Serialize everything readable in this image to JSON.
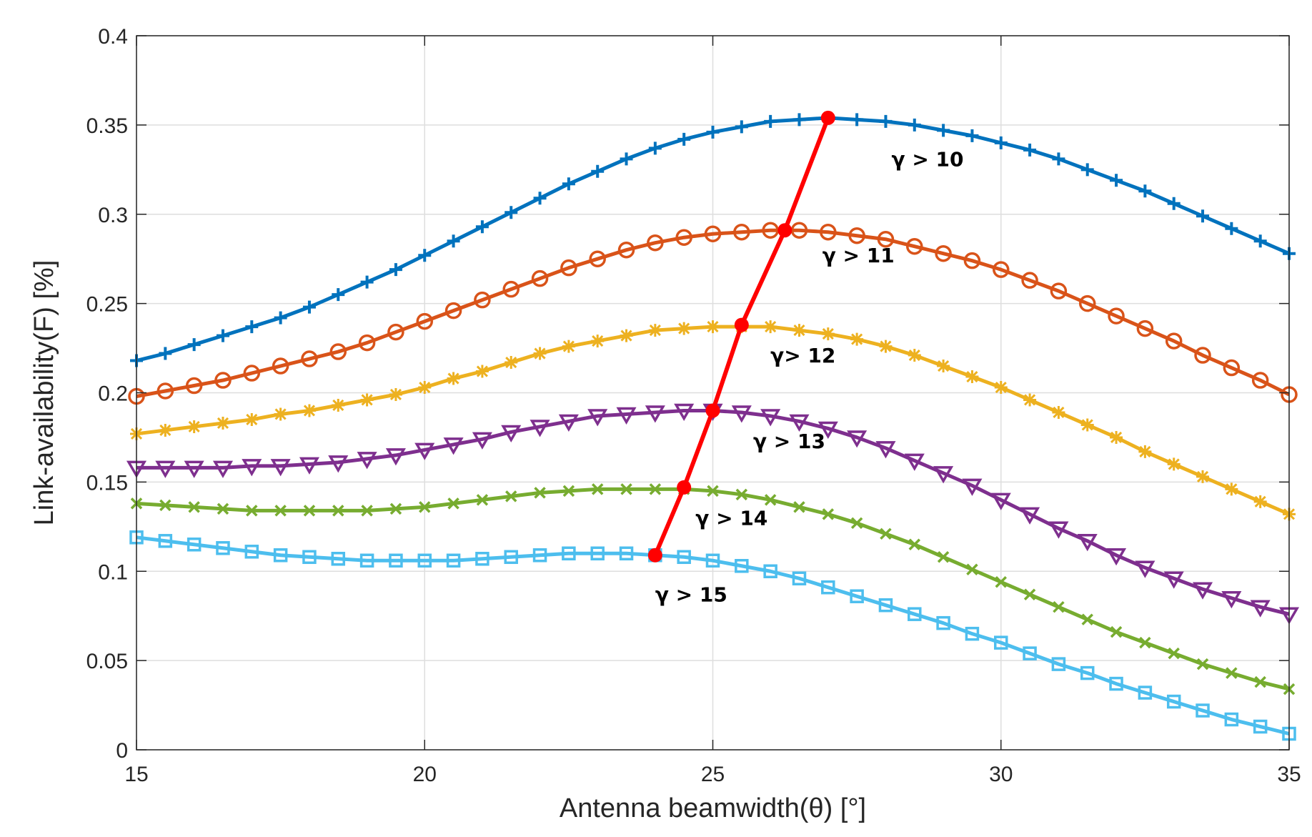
{
  "chart_data": {
    "type": "line",
    "title": "",
    "xlabel": "Antenna beamwidth(θ) [°]",
    "ylabel": "Link-availability(F) [%]",
    "xlim": [
      15,
      35
    ],
    "ylim": [
      0,
      0.4
    ],
    "x_ticks": [
      15,
      20,
      25,
      30,
      35
    ],
    "y_ticks": [
      0,
      0.05,
      0.1,
      0.15,
      0.2,
      0.25,
      0.3,
      0.35,
      0.4
    ],
    "x_tick_labels": [
      "15",
      "20",
      "25",
      "30",
      "35"
    ],
    "y_tick_labels": [
      "0",
      "0.05",
      "0.1",
      "0.15",
      "0.2",
      "0.25",
      "0.3",
      "0.35",
      "0.4"
    ],
    "grid": true,
    "x": [
      15,
      15.5,
      16,
      16.5,
      17,
      17.5,
      18,
      18.5,
      19,
      19.5,
      20,
      20.5,
      21,
      21.5,
      22,
      22.5,
      23,
      23.5,
      24,
      24.5,
      25,
      25.5,
      26,
      26.5,
      27,
      27.5,
      28,
      28.5,
      29,
      29.5,
      30,
      30.5,
      31,
      31.5,
      32,
      32.5,
      33,
      33.5,
      34,
      34.5,
      35
    ],
    "series": [
      {
        "name": "γ > 10",
        "color": "#0072BD",
        "marker": "plus",
        "values": [
          0.218,
          0.222,
          0.227,
          0.232,
          0.237,
          0.242,
          0.248,
          0.255,
          0.262,
          0.269,
          0.277,
          0.285,
          0.293,
          0.301,
          0.309,
          0.317,
          0.324,
          0.331,
          0.337,
          0.342,
          0.346,
          0.349,
          0.352,
          0.353,
          0.354,
          0.353,
          0.352,
          0.35,
          0.347,
          0.344,
          0.34,
          0.336,
          0.331,
          0.325,
          0.319,
          0.313,
          0.306,
          0.299,
          0.292,
          0.285,
          0.278
        ]
      },
      {
        "name": "γ > 11",
        "color": "#D95319",
        "marker": "circle",
        "values": [
          0.198,
          0.201,
          0.204,
          0.207,
          0.211,
          0.215,
          0.219,
          0.223,
          0.228,
          0.234,
          0.24,
          0.246,
          0.252,
          0.258,
          0.264,
          0.27,
          0.275,
          0.28,
          0.284,
          0.287,
          0.289,
          0.29,
          0.291,
          0.291,
          0.29,
          0.288,
          0.286,
          0.282,
          0.278,
          0.274,
          0.269,
          0.263,
          0.257,
          0.25,
          0.243,
          0.236,
          0.229,
          0.221,
          0.214,
          0.207,
          0.199
        ]
      },
      {
        "name": "γ > 12",
        "color": "#EDB120",
        "marker": "asterisk",
        "values": [
          0.177,
          0.179,
          0.181,
          0.183,
          0.185,
          0.188,
          0.19,
          0.193,
          0.196,
          0.199,
          0.203,
          0.208,
          0.212,
          0.217,
          0.222,
          0.226,
          0.229,
          0.232,
          0.235,
          0.236,
          0.237,
          0.237,
          0.237,
          0.235,
          0.233,
          0.23,
          0.226,
          0.221,
          0.215,
          0.209,
          0.203,
          0.196,
          0.189,
          0.182,
          0.175,
          0.167,
          0.16,
          0.153,
          0.146,
          0.139,
          0.132
        ]
      },
      {
        "name": "γ > 13",
        "color": "#7E2F8E",
        "marker": "triangle-down",
        "values": [
          0.158,
          0.158,
          0.158,
          0.158,
          0.159,
          0.159,
          0.16,
          0.161,
          0.163,
          0.165,
          0.168,
          0.171,
          0.174,
          0.178,
          0.181,
          0.184,
          0.187,
          0.188,
          0.189,
          0.19,
          0.19,
          0.189,
          0.187,
          0.184,
          0.18,
          0.175,
          0.169,
          0.162,
          0.155,
          0.148,
          0.14,
          0.132,
          0.124,
          0.117,
          0.109,
          0.102,
          0.096,
          0.09,
          0.085,
          0.08,
          0.076
        ]
      },
      {
        "name": "γ > 14",
        "color": "#77AC30",
        "marker": "x",
        "values": [
          0.138,
          0.137,
          0.136,
          0.135,
          0.134,
          0.134,
          0.134,
          0.134,
          0.134,
          0.135,
          0.136,
          0.138,
          0.14,
          0.142,
          0.144,
          0.145,
          0.146,
          0.146,
          0.146,
          0.146,
          0.145,
          0.143,
          0.14,
          0.136,
          0.132,
          0.127,
          0.121,
          0.115,
          0.108,
          0.101,
          0.094,
          0.087,
          0.08,
          0.073,
          0.066,
          0.06,
          0.054,
          0.048,
          0.043,
          0.038,
          0.034
        ]
      },
      {
        "name": "γ > 15",
        "color": "#4DBEEE",
        "marker": "square",
        "values": [
          0.119,
          0.117,
          0.115,
          0.113,
          0.111,
          0.109,
          0.108,
          0.107,
          0.106,
          0.106,
          0.106,
          0.106,
          0.107,
          0.108,
          0.109,
          0.11,
          0.11,
          0.11,
          0.109,
          0.108,
          0.106,
          0.103,
          0.1,
          0.096,
          0.091,
          0.086,
          0.081,
          0.076,
          0.071,
          0.065,
          0.06,
          0.054,
          0.048,
          0.043,
          0.037,
          0.032,
          0.027,
          0.022,
          0.017,
          0.013,
          0.009
        ]
      }
    ],
    "peak_line": {
      "name": "peak",
      "color": "#FF0000",
      "x": [
        24,
        24.5,
        25,
        25.5,
        26.25,
        27
      ],
      "y": [
        0.109,
        0.147,
        0.19,
        0.238,
        0.291,
        0.354
      ]
    },
    "annotations": [
      {
        "text": "γ > 10",
        "x": 28.1,
        "y": 0.327
      },
      {
        "text": "γ > 11",
        "x": 26.9,
        "y": 0.273
      },
      {
        "text": "γ> 12",
        "x": 26.0,
        "y": 0.217
      },
      {
        "text": "γ > 13",
        "x": 25.7,
        "y": 0.169
      },
      {
        "text": "γ > 14",
        "x": 24.7,
        "y": 0.126
      },
      {
        "text": "γ > 15",
        "x": 24.0,
        "y": 0.083
      }
    ]
  }
}
